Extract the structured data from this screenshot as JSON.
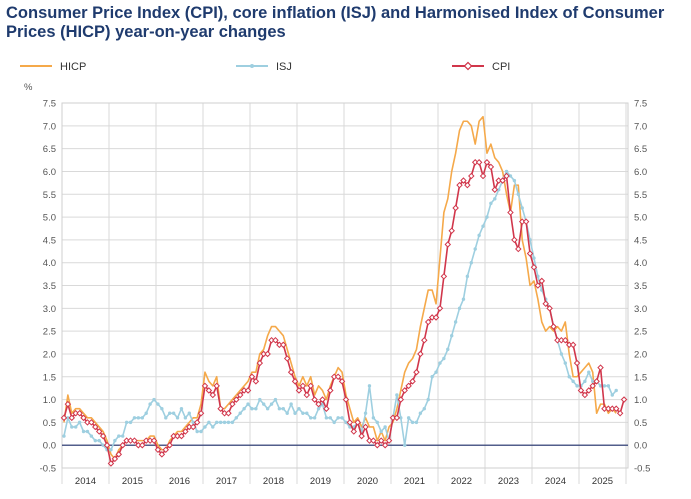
{
  "page": {
    "title_line1": "Consumer Price Index (CPI), core inflation (ISJ) and Harmonised Index of Consumer",
    "title_line2": "Prices (HICP) year-on-year changes"
  },
  "colors": {
    "hicp": "#f5a94a",
    "isj": "#9ecfe0",
    "cpi": "#d1364b",
    "title": "#1f3b6e",
    "zero_line": "#1f2f6b"
  },
  "chart_data": {
    "type": "line",
    "title": "Consumer Price Index (CPI), core inflation (ISJ) and Harmonised Index of Consumer Prices (HICP) year-on-year changes",
    "ylabel": "%",
    "xlabel": "",
    "ylim": [
      -0.5,
      7.5
    ],
    "yticks": [
      "-0.5",
      "0.0",
      "0.5",
      "1.0",
      "1.5",
      "2.0",
      "2.5",
      "3.0",
      "3.5",
      "4.0",
      "4.5",
      "5.0",
      "5.5",
      "6.0",
      "6.5",
      "7.0",
      "7.5"
    ],
    "x_start": "2014-01",
    "x_end": "2025-03",
    "years": [
      "2014",
      "2015",
      "2016",
      "2017",
      "2018",
      "2019",
      "2020",
      "2021",
      "2022",
      "2023",
      "2024",
      "2025"
    ],
    "legend": [
      "HICP",
      "ISJ",
      "CPI"
    ],
    "legend_position": "top",
    "grid": true,
    "series": [
      {
        "name": "HICP",
        "values": [
          0.5,
          1.1,
          0.7,
          0.8,
          0.8,
          0.7,
          0.6,
          0.6,
          0.5,
          0.4,
          0.3,
          0.1,
          -0.2,
          -0.3,
          -0.1,
          0.0,
          0.1,
          0.1,
          0.1,
          0.1,
          0.1,
          0.1,
          0.2,
          0.2,
          0.0,
          -0.1,
          -0.1,
          0.1,
          0.2,
          0.3,
          0.3,
          0.4,
          0.5,
          0.6,
          0.6,
          0.9,
          1.6,
          1.4,
          1.3,
          1.5,
          0.8,
          0.8,
          0.9,
          1.0,
          1.1,
          1.2,
          1.3,
          1.4,
          1.6,
          1.6,
          2.0,
          2.1,
          2.4,
          2.6,
          2.6,
          2.5,
          2.4,
          2.1,
          1.8,
          1.5,
          1.3,
          1.5,
          1.3,
          1.5,
          1.1,
          1.3,
          1.2,
          1.0,
          1.3,
          1.5,
          1.7,
          1.6,
          1.1,
          0.8,
          0.5,
          0.6,
          0.4,
          0.6,
          0.4,
          0.4,
          0.1,
          0.3,
          0.1,
          0.4,
          0.5,
          0.8,
          1.2,
          1.6,
          1.8,
          1.9,
          2.1,
          2.6,
          3.0,
          3.4,
          3.4,
          3.1,
          4.1,
          5.1,
          5.4,
          6.0,
          6.4,
          6.9,
          7.1,
          7.1,
          7.0,
          6.6,
          7.1,
          7.2,
          6.4,
          6.6,
          6.3,
          6.2,
          6.0,
          5.5,
          5.1,
          5.7,
          5.7,
          4.5,
          4.1,
          3.5,
          3.6,
          3.2,
          2.7,
          2.5,
          2.6,
          2.5,
          2.6,
          2.5,
          2.7,
          2.0,
          1.5,
          1.5,
          1.6,
          1.7,
          1.8,
          1.6,
          0.7,
          0.9,
          0.9,
          0.7,
          0.8,
          0.7
        ]
      },
      {
        "name": "ISJ",
        "values": [
          0.2,
          0.6,
          0.4,
          0.4,
          0.5,
          0.3,
          0.3,
          0.2,
          0.1,
          0.1,
          0.0,
          -0.1,
          -0.1,
          0.1,
          0.2,
          0.2,
          0.5,
          0.5,
          0.6,
          0.6,
          0.6,
          0.7,
          0.9,
          1.0,
          0.9,
          0.8,
          0.6,
          0.7,
          0.7,
          0.6,
          0.8,
          0.6,
          0.7,
          0.5,
          0.3,
          0.3,
          0.4,
          0.5,
          0.4,
          0.5,
          0.5,
          0.5,
          0.5,
          0.5,
          0.6,
          0.7,
          0.8,
          0.9,
          0.8,
          0.8,
          1.0,
          0.9,
          0.8,
          0.9,
          1.0,
          0.8,
          0.8,
          0.7,
          0.9,
          0.7,
          0.8,
          0.7,
          0.7,
          0.6,
          0.6,
          0.8,
          0.9,
          0.6,
          0.6,
          0.5,
          0.6,
          0.6,
          0.5,
          0.4,
          0.4,
          0.5,
          0.3,
          0.7,
          1.3,
          0.6,
          0.5,
          0.3,
          0.4,
          0.1,
          0.6,
          1.1,
          0.6,
          0.0,
          0.6,
          0.5,
          0.5,
          0.7,
          0.8,
          1.0,
          1.5,
          1.6,
          1.8,
          1.9,
          2.1,
          2.4,
          2.7,
          3.0,
          3.2,
          3.7,
          4.0,
          4.3,
          4.6,
          4.8,
          5.0,
          5.3,
          5.4,
          5.6,
          5.8,
          6.0,
          5.9,
          5.8,
          5.5,
          5.2,
          4.9,
          4.5,
          4.1,
          3.7,
          3.4,
          3.2,
          3.0,
          2.6,
          2.3,
          2.0,
          1.8,
          1.5,
          1.4,
          1.3,
          1.3,
          1.4,
          1.6,
          1.4,
          1.4,
          1.3,
          1.3,
          1.3,
          1.1,
          1.2
        ]
      },
      {
        "name": "CPI",
        "values": [
          0.6,
          0.9,
          0.6,
          0.7,
          0.7,
          0.6,
          0.5,
          0.5,
          0.4,
          0.3,
          0.2,
          0.0,
          -0.4,
          -0.3,
          -0.2,
          0.0,
          0.1,
          0.1,
          0.1,
          0.0,
          0.0,
          0.1,
          0.1,
          0.1,
          -0.1,
          -0.2,
          -0.1,
          0.0,
          0.2,
          0.2,
          0.2,
          0.3,
          0.4,
          0.4,
          0.5,
          0.7,
          1.3,
          1.2,
          1.1,
          1.3,
          0.8,
          0.7,
          0.7,
          0.9,
          1.0,
          1.1,
          1.2,
          1.2,
          1.5,
          1.4,
          1.8,
          2.0,
          2.0,
          2.3,
          2.3,
          2.2,
          2.2,
          1.9,
          1.6,
          1.4,
          1.2,
          1.3,
          1.1,
          1.3,
          1.0,
          0.9,
          1.0,
          0.8,
          1.2,
          1.5,
          1.5,
          1.4,
          1.0,
          0.5,
          0.3,
          0.5,
          0.2,
          0.4,
          0.1,
          0.1,
          0.0,
          0.1,
          0.0,
          0.1,
          0.6,
          0.6,
          1.0,
          1.2,
          1.3,
          1.4,
          1.6,
          2.0,
          2.3,
          2.7,
          2.8,
          2.8,
          3.0,
          3.7,
          4.4,
          4.7,
          5.2,
          5.7,
          5.8,
          5.7,
          5.9,
          6.2,
          6.2,
          5.9,
          6.2,
          6.1,
          5.6,
          5.8,
          5.8,
          5.9,
          5.1,
          4.5,
          4.3,
          4.9,
          4.9,
          4.2,
          3.9,
          3.5,
          3.6,
          3.1,
          3.0,
          2.6,
          2.3,
          2.3,
          2.3,
          2.2,
          2.2,
          1.8,
          1.2,
          1.1,
          1.2,
          1.3,
          1.4,
          1.7,
          0.8,
          0.8,
          0.8,
          0.8,
          0.7,
          1.0
        ]
      }
    ]
  }
}
